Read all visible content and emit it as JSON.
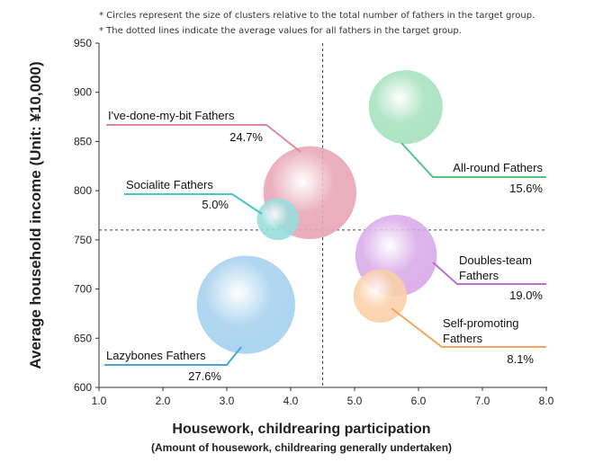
{
  "notes": [
    "* Circles represent the size of clusters relative to the total number of fathers in the target group.",
    "* The dotted lines indicate the average values for all fathers in the target group."
  ],
  "chart_data": {
    "type": "scatter",
    "subtype": "bubble",
    "xlabel": "Housework, childrearing participation",
    "xlabel_sub": "(Amount of housework, childrearing generally undertaken)",
    "ylabel": "Average household income (Unit: ¥10,000)",
    "xlim": [
      1.0,
      8.0
    ],
    "ylim": [
      600,
      950
    ],
    "xticks": [
      "1.0",
      "2.0",
      "3.0",
      "4.0",
      "5.0",
      "6.0",
      "7.0",
      "8.0"
    ],
    "yticks": [
      "600",
      "650",
      "700",
      "750",
      "800",
      "850",
      "900",
      "950"
    ],
    "average_x": 4.5,
    "average_y": 760,
    "grid": false,
    "series": [
      {
        "name": "I've-done-my-bit Fathers",
        "label_lines": [
          "I've-done-my-bit Fathers"
        ],
        "percent": "24.7%",
        "share": 24.7,
        "x": 4.3,
        "y": 798,
        "color": "#e8a6b6",
        "line_color": "#dc8aa3"
      },
      {
        "name": "Socialite Fathers",
        "label_lines": [
          "Socialite Fathers"
        ],
        "percent": "5.0%",
        "share": 5.0,
        "x": 3.8,
        "y": 771,
        "color": "#98dddd",
        "line_color": "#4cc4c4"
      },
      {
        "name": "All-round Fathers",
        "label_lines": [
          "All-round Fathers"
        ],
        "percent": "15.6%",
        "share": 15.6,
        "x": 5.8,
        "y": 885,
        "color": "#a6e2be",
        "line_color": "#52c487"
      },
      {
        "name": "Doubles-team Fathers",
        "label_lines": [
          "Doubles-team",
          "Fathers"
        ],
        "percent": "19.0%",
        "share": 19.0,
        "x": 5.65,
        "y": 734,
        "color": "#d9aaea",
        "line_color": "#b86fd6"
      },
      {
        "name": "Self-promoting Fathers",
        "label_lines": [
          "Self-promoting",
          "Fathers"
        ],
        "percent": "8.1%",
        "share": 8.1,
        "x": 5.4,
        "y": 693,
        "color": "#fbd1a8",
        "line_color": "#f2a55c"
      },
      {
        "name": "Lazybones Fathers",
        "label_lines": [
          "Lazybones Fathers"
        ],
        "percent": "27.6%",
        "share": 27.6,
        "x": 3.3,
        "y": 684,
        "color": "#a6d1ee",
        "line_color": "#4aa6d6"
      }
    ]
  }
}
